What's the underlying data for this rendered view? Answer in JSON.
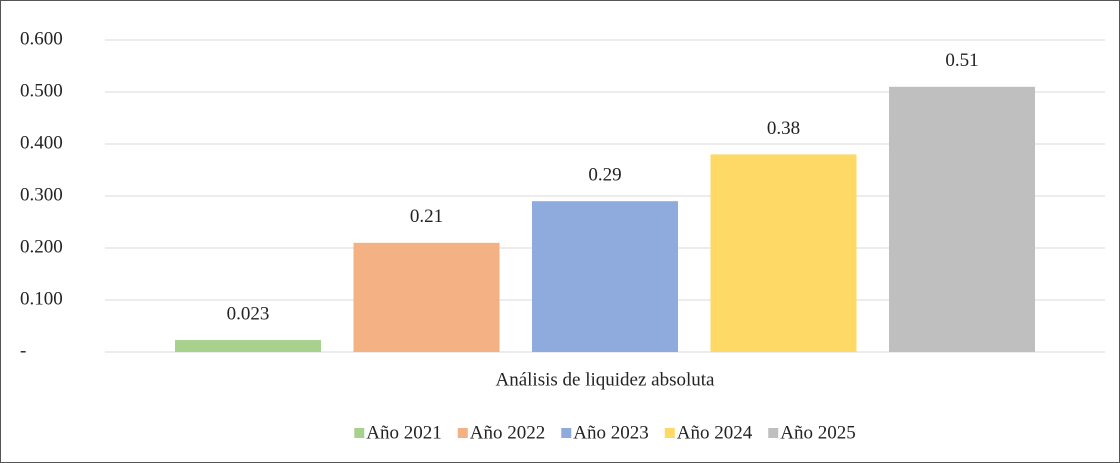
{
  "chart_data": {
    "type": "bar",
    "categories": [
      "Análisis de liquidez absoluta"
    ],
    "series": [
      {
        "name": "Año 2021",
        "color": "#a9d18e",
        "values": [
          0.023
        ]
      },
      {
        "name": "Año 2022",
        "color": "#f4b183",
        "values": [
          0.21
        ]
      },
      {
        "name": "Año 2023",
        "color": "#8faadc",
        "values": [
          0.29
        ]
      },
      {
        "name": "Año 2024",
        "color": "#ffd966",
        "values": [
          0.38
        ]
      },
      {
        "name": "Año 2025",
        "color": "#bfbfbf",
        "values": [
          0.51
        ]
      }
    ],
    "ylim": [
      0,
      0.6
    ],
    "yticks": [
      {
        "value": 0,
        "label": "-"
      },
      {
        "value": 0.1,
        "label": "0.100"
      },
      {
        "value": 0.2,
        "label": "0.200"
      },
      {
        "value": 0.3,
        "label": "0.300"
      },
      {
        "value": 0.4,
        "label": "0.400"
      },
      {
        "value": 0.5,
        "label": "0.500"
      },
      {
        "value": 0.6,
        "label": "0.600"
      }
    ],
    "grid": true,
    "legend": "bottom"
  }
}
